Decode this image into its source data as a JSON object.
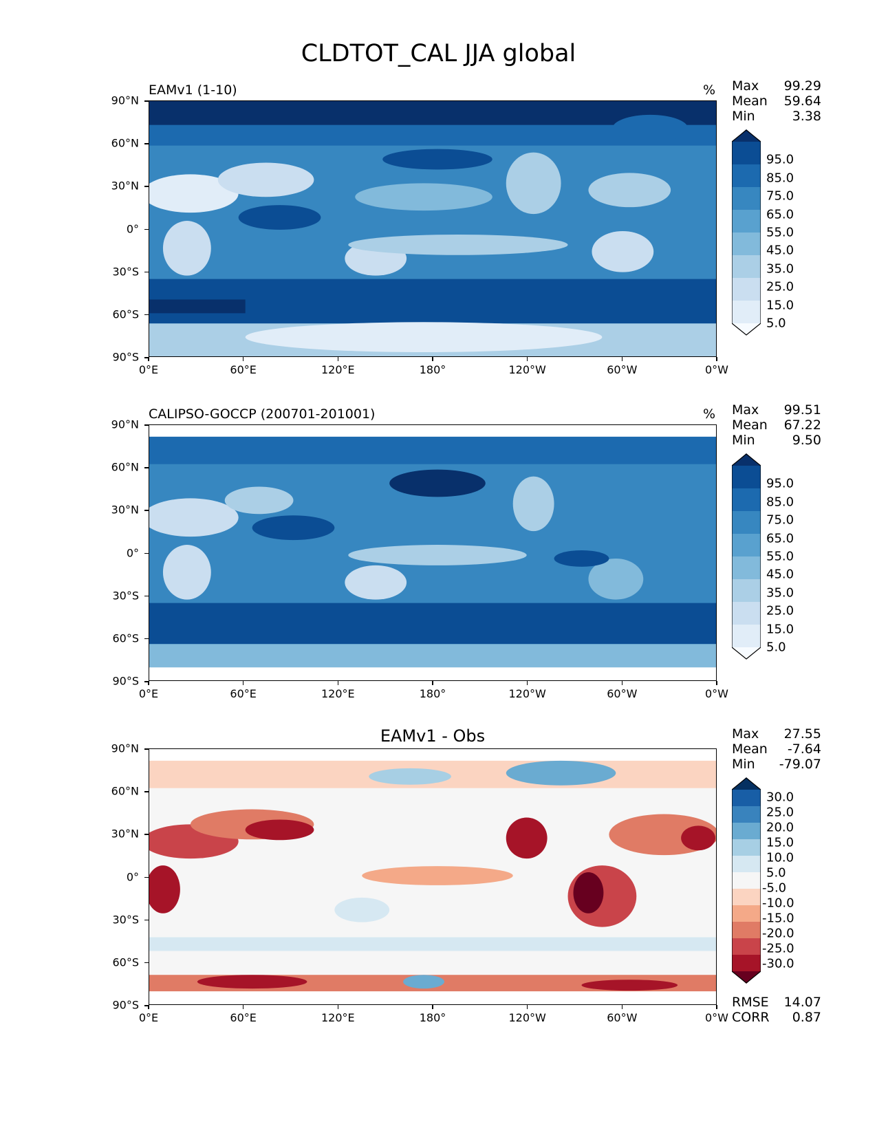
{
  "figure": {
    "title": "CLDTOT_CAL JJA global"
  },
  "axes": {
    "lat_ticks": [
      "90°N",
      "60°N",
      "30°N",
      "0°",
      "30°S",
      "60°S",
      "90°S"
    ],
    "lon_ticks": [
      "0°E",
      "60°E",
      "120°E",
      "180°",
      "120°W",
      "60°W",
      "0°W"
    ]
  },
  "panels": [
    {
      "label": "EAMv1 (1-10)",
      "unit": "%",
      "stats": {
        "max_label": "Max",
        "max": "99.29",
        "mean_label": "Mean",
        "mean": "59.64",
        "min_label": "Min",
        "min": "3.38"
      },
      "colorbar": [
        "95.0",
        "85.0",
        "75.0",
        "65.0",
        "55.0",
        "45.0",
        "35.0",
        "25.0",
        "15.0",
        "5.0"
      ],
      "palette": [
        "#f7fbff",
        "#e1edf8",
        "#cadef0",
        "#abcfe6",
        "#82badb",
        "#59a1cf",
        "#3787c0",
        "#1c6aaf",
        "#0b4d94",
        "#08306b"
      ]
    },
    {
      "label": "CALIPSO-GOCCP (200701-201001)",
      "unit": "%",
      "stats": {
        "max_label": "Max",
        "max": "99.51",
        "mean_label": "Mean",
        "mean": "67.22",
        "min_label": "Min",
        "min": "9.50"
      },
      "colorbar": [
        "95.0",
        "85.0",
        "75.0",
        "65.0",
        "55.0",
        "45.0",
        "35.0",
        "25.0",
        "15.0",
        "5.0"
      ],
      "palette": [
        "#f7fbff",
        "#e1edf8",
        "#cadef0",
        "#abcfe6",
        "#82badb",
        "#59a1cf",
        "#3787c0",
        "#1c6aaf",
        "#0b4d94",
        "#08306b"
      ]
    },
    {
      "label": "EAMv1 - Obs",
      "unit": "",
      "stats": {
        "max_label": "Max",
        "max": "27.55",
        "mean_label": "Mean",
        "mean": "-7.64",
        "min_label": "Min",
        "min": "-79.07"
      },
      "colorbar": [
        "30.0",
        "25.0",
        "20.0",
        "15.0",
        "10.0",
        "5.0",
        "-5.0",
        "-10.0",
        "-15.0",
        "-20.0",
        "-25.0",
        "-30.0"
      ],
      "palette": [
        "#67001f",
        "#a61428",
        "#c9444a",
        "#e07b65",
        "#f4a988",
        "#fbd4c1",
        "#f6f6f6",
        "#d6e8f2",
        "#a7cfe4",
        "#6aabd1",
        "#3983bd",
        "#185ea6",
        "#053061"
      ],
      "footer": {
        "rmse_label": "RMSE",
        "rmse": "14.07",
        "corr_label": "CORR",
        "corr": "0.87"
      }
    }
  ]
}
